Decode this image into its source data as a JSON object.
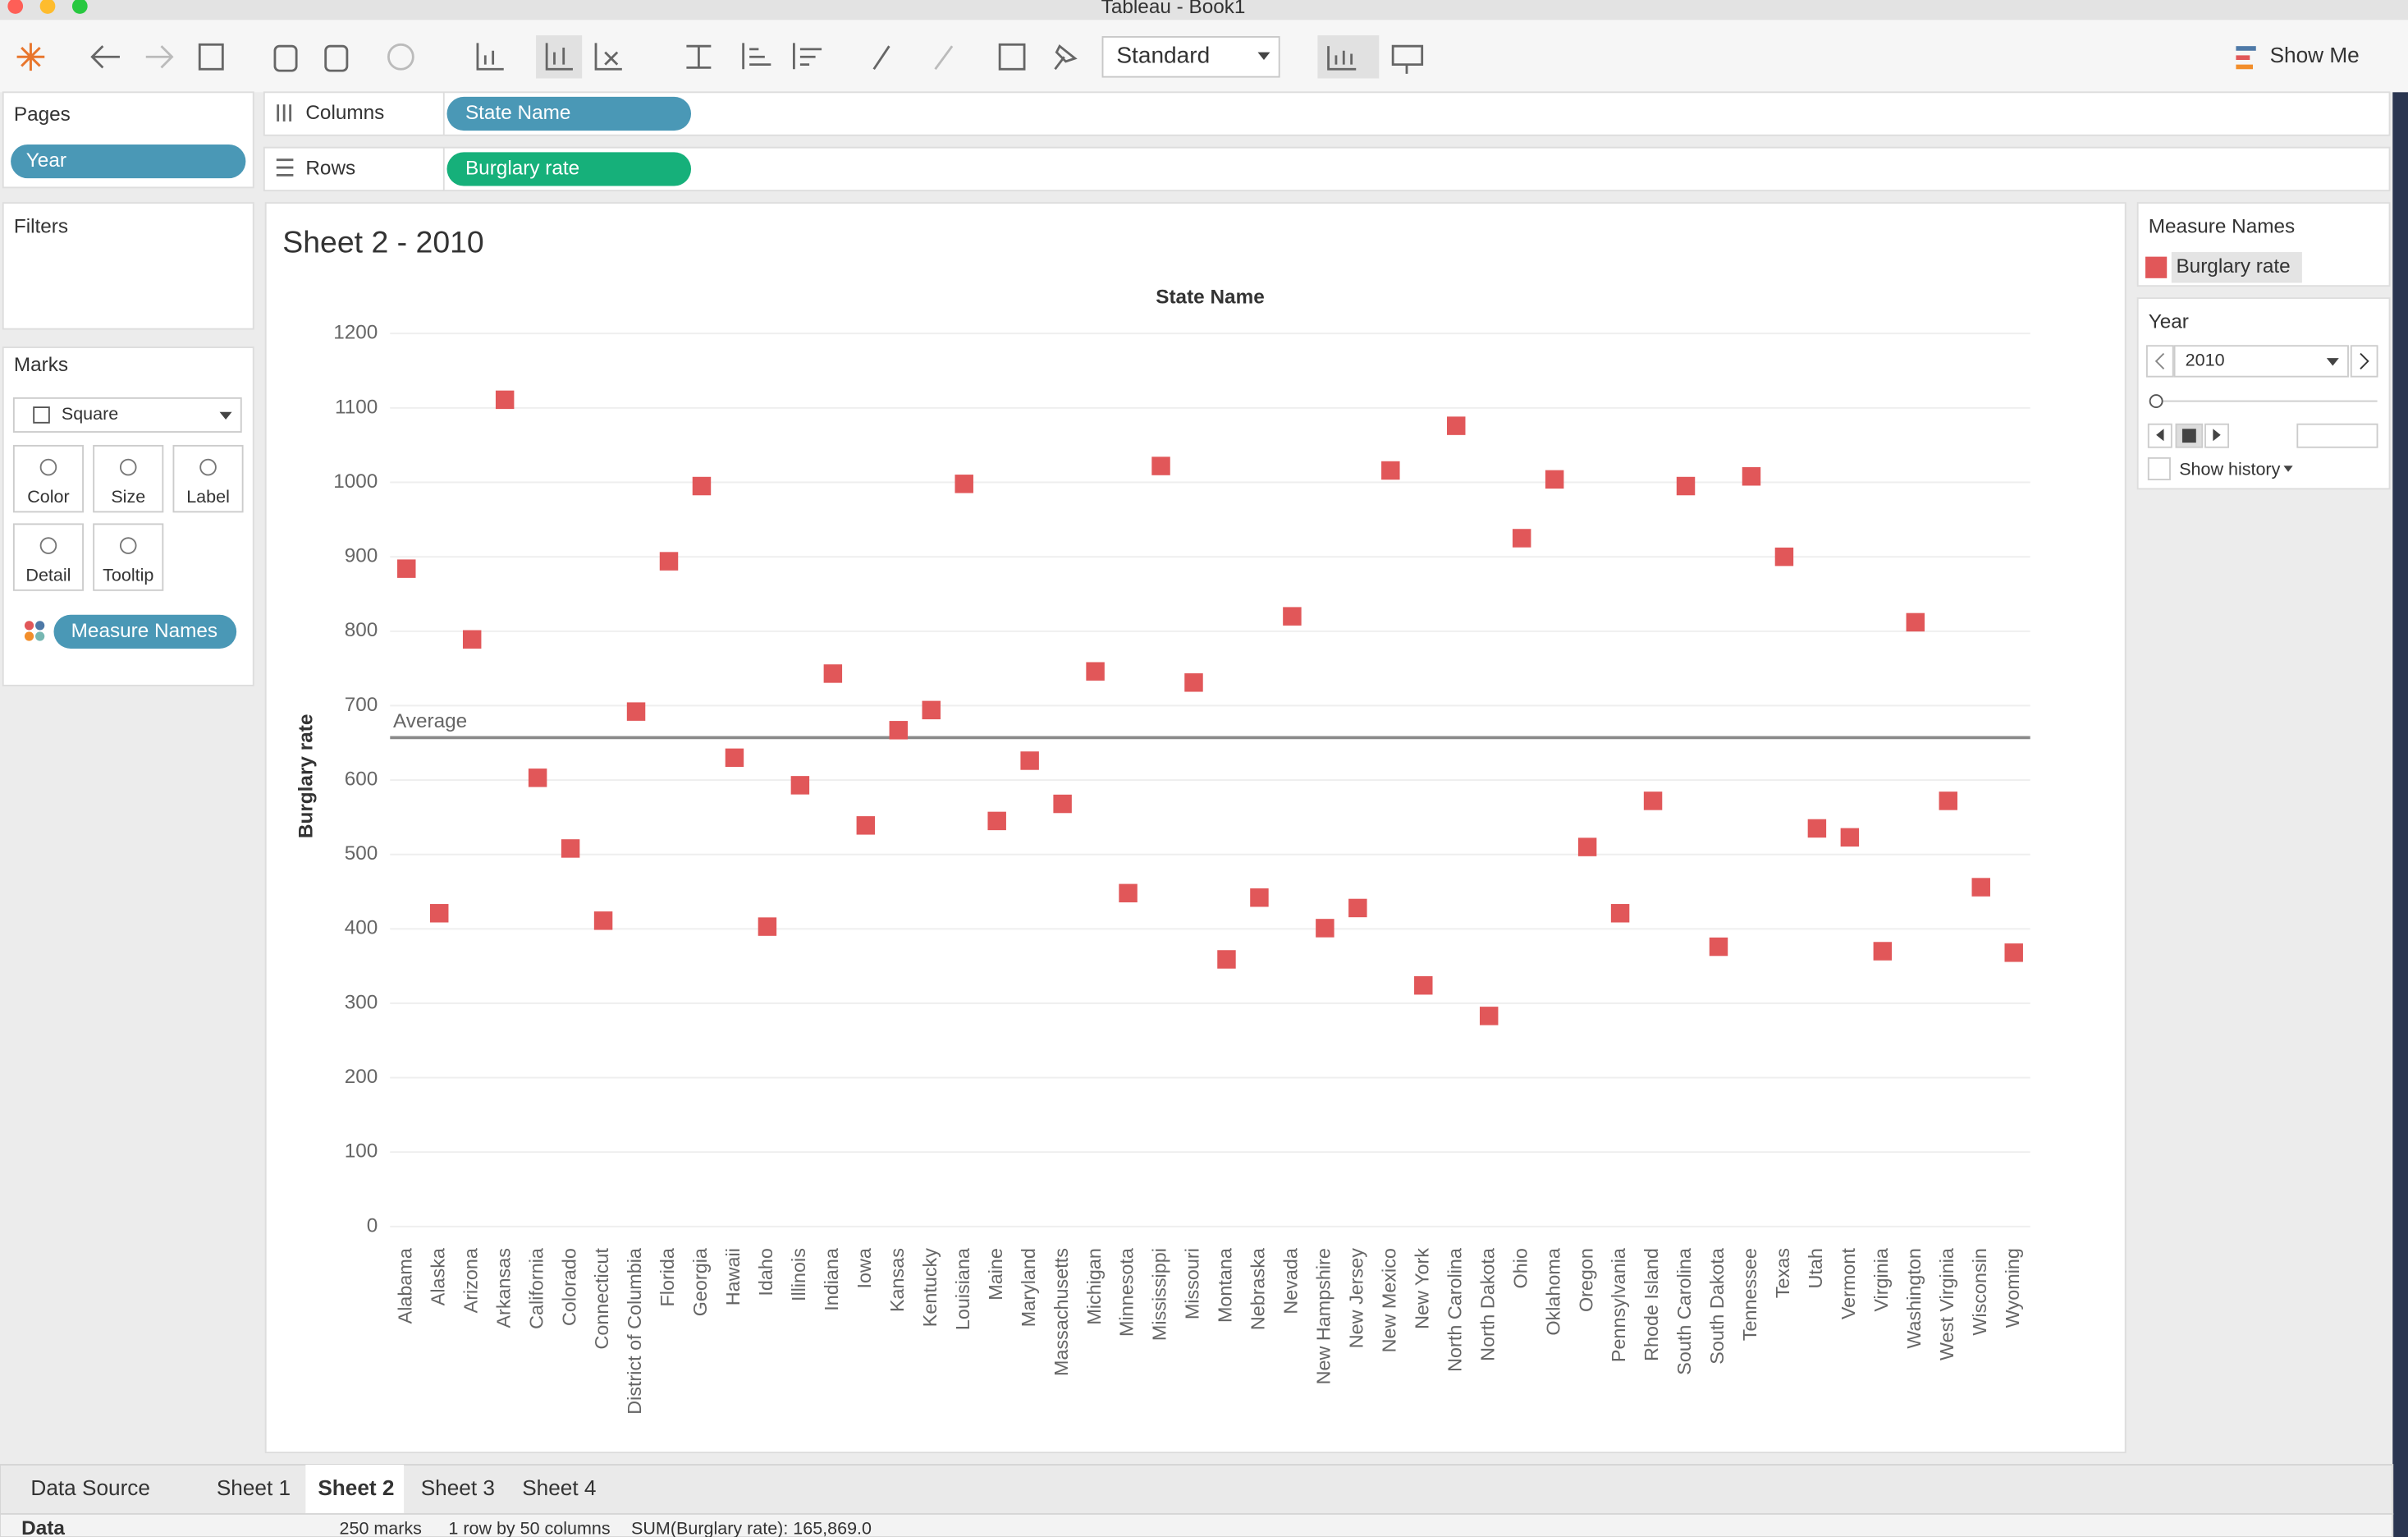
{
  "window": {
    "title": "Tableau - Book1"
  },
  "toolbar": {
    "fit": "Standard",
    "show_me": "Show Me"
  },
  "pages": {
    "title": "Pages",
    "pill": "Year"
  },
  "columns": {
    "label": "Columns",
    "pill": "State Name"
  },
  "rows": {
    "label": "Rows",
    "pill": "Burglary rate"
  },
  "filters": {
    "title": "Filters"
  },
  "marks": {
    "title": "Marks",
    "mark_type": "Square",
    "buttons": [
      "Color",
      "Size",
      "Label",
      "Detail",
      "Tooltip"
    ],
    "pill": "Measure Names"
  },
  "legend": {
    "title": "Measure Names",
    "item": "Burglary rate"
  },
  "page_control": {
    "title": "Year",
    "value": "2010",
    "history": "Show history"
  },
  "tabs": [
    "Data Source",
    "Sheet 1",
    "Sheet 2",
    "Sheet 3",
    "Sheet 4"
  ],
  "status": {
    "source": "Data",
    "marks": "250 marks",
    "shape": "1 row by 50 columns",
    "sum": "SUM(Burglary rate): 165,869.0"
  },
  "chart_data": {
    "type": "scatter",
    "title": "Sheet 2 - 2010",
    "x_label": "State Name",
    "y_label": "Burglary rate",
    "categories": [
      "Alabama",
      "Alaska",
      "Arizona",
      "Arkansas",
      "California",
      "Colorado",
      "Connecticut",
      "District of Columbia",
      "Florida",
      "Georgia",
      "Hawaii",
      "Idaho",
      "Illinois",
      "Indiana",
      "Iowa",
      "Kansas",
      "Kentucky",
      "Louisiana",
      "Maine",
      "Maryland",
      "Massachusetts",
      "Michigan",
      "Minnesota",
      "Mississippi",
      "Missouri",
      "Montana",
      "Nebraska",
      "Nevada",
      "New Hampshire",
      "New Jersey",
      "New Mexico",
      "New York",
      "North Carolina",
      "North Dakota",
      "Ohio",
      "Oklahoma",
      "Oregon",
      "Pennsylvania",
      "Rhode Island",
      "South Carolina",
      "South Dakota",
      "Tennessee",
      "Texas",
      "Utah",
      "Vermont",
      "Virginia",
      "Washington",
      "West Virginia",
      "Wisconsin",
      "Wyoming"
    ],
    "series": [
      {
        "name": "Burglary rate",
        "color": "#e15759",
        "values": [
          884,
          421,
          789,
          1111,
          603,
          508,
          411,
          692,
          894,
          995,
          630,
          403,
          593,
          743,
          539,
          667,
          694,
          998,
          545,
          626,
          568,
          746,
          448,
          1022,
          731,
          359,
          442,
          820,
          401,
          428,
          1016,
          324,
          1076,
          283,
          925,
          1004,
          510,
          421,
          572,
          995,
          376,
          1008,
          900,
          535,
          523,
          370,
          812,
          572,
          456,
          368
        ]
      }
    ],
    "reference_line": {
      "label": "Average",
      "value": 657
    },
    "ylim": [
      0,
      1200
    ],
    "yticks": [
      0,
      100,
      200,
      300,
      400,
      500,
      600,
      700,
      800,
      900,
      1000,
      1100,
      1200
    ],
    "grid": true
  }
}
